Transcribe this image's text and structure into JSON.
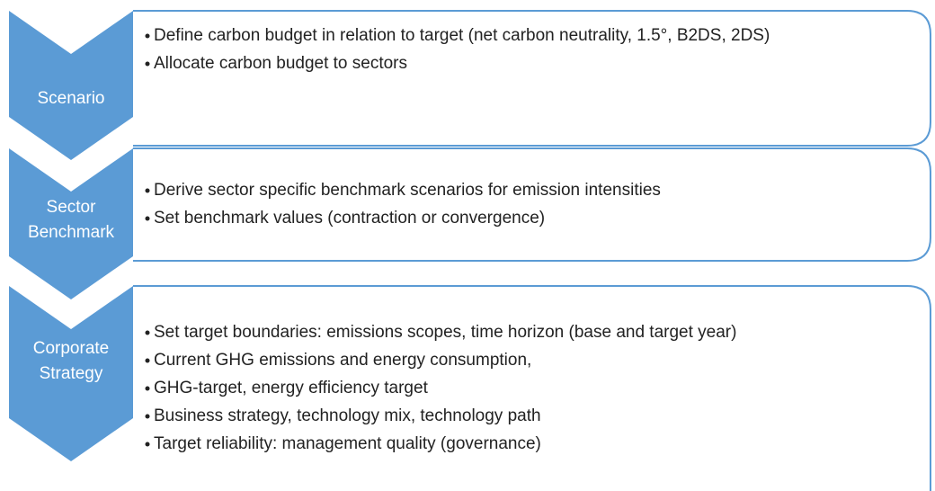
{
  "steps": [
    {
      "label": [
        "Scenario"
      ],
      "bullets": [
        "Define carbon budget in relation to target (net carbon neutrality, 1.5°, B2DS, 2DS)",
        "Allocate carbon budget to sectors"
      ]
    },
    {
      "label": [
        "Sector",
        "Benchmark"
      ],
      "bullets": [
        "Derive sector specific benchmark scenarios for emission intensities",
        "Set benchmark values (contraction or convergence)"
      ]
    },
    {
      "label": [
        "Corporate",
        "Strategy"
      ],
      "bullets": [
        "Set target boundaries: emissions scopes, time horizon (base and target year)",
        "Current GHG emissions and energy consumption,",
        "GHG-target, energy efficiency target",
        "Business strategy, technology mix, technology path",
        "Target reliability: management quality (governance)"
      ]
    }
  ]
}
